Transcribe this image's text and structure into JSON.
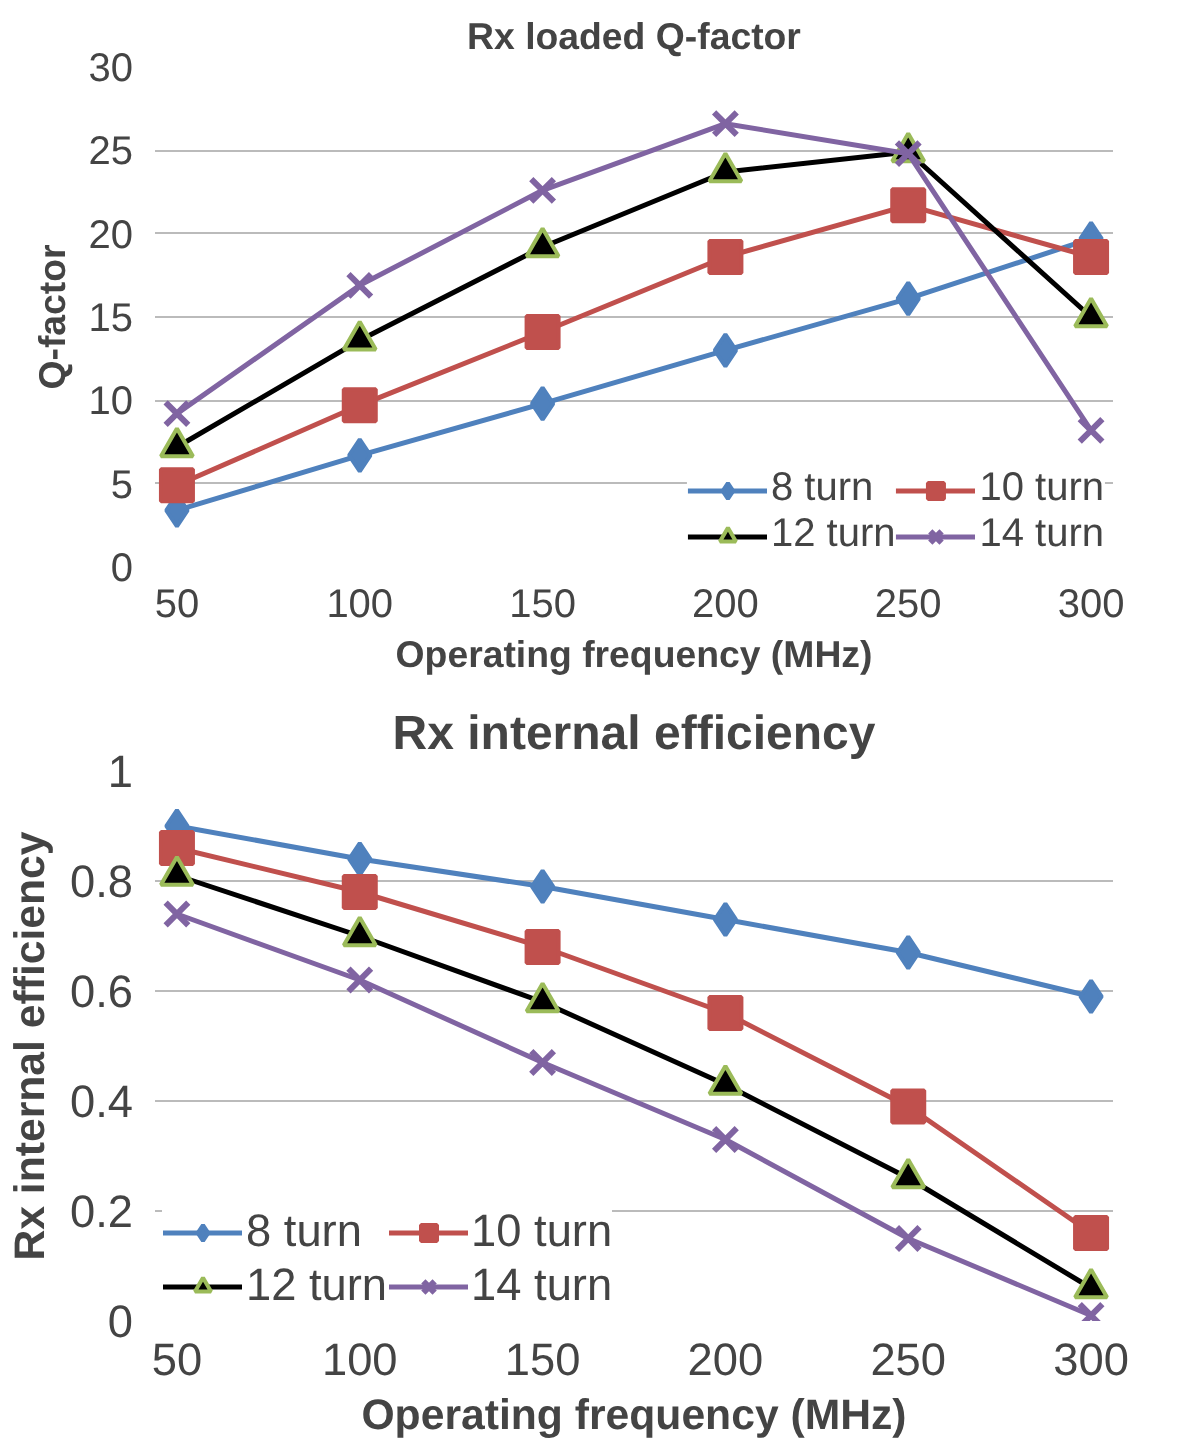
{
  "chart_data": [
    {
      "type": "line",
      "title": "Rx loaded Q-factor",
      "xlabel": "Operating frequency (MHz)",
      "ylabel": "Q-factor",
      "categories": [
        "50",
        "100",
        "150",
        "200",
        "250",
        "300"
      ],
      "series": [
        {
          "name": "8 turn",
          "color": "#4f81bd",
          "marker": "diamond",
          "values": [
            3.4,
            6.7,
            9.8,
            13.0,
            16.1,
            19.7
          ]
        },
        {
          "name": "10 turn",
          "color": "#c0504d",
          "marker": "square",
          "values": [
            4.9,
            9.7,
            14.1,
            18.6,
            21.7,
            18.6
          ]
        },
        {
          "name": "12 turn",
          "color": "#000000",
          "marker": "triangle",
          "values": [
            7.2,
            13.6,
            19.2,
            23.7,
            24.9,
            15.0
          ]
        },
        {
          "name": "14 turn",
          "color": "#8064a2",
          "marker": "cross",
          "values": [
            9.2,
            16.9,
            22.6,
            26.6,
            24.8,
            8.2
          ]
        }
      ],
      "ylim": [
        0,
        30
      ],
      "yticks": [
        0,
        5,
        10,
        15,
        20,
        25,
        30
      ],
      "grid": "y",
      "legend": "bottom right"
    },
    {
      "type": "line",
      "title": "Rx internal efficiency",
      "xlabel": "Operating frequency (MHz)",
      "ylabel": "Rx internal efficiency",
      "categories": [
        "50",
        "100",
        "150",
        "200",
        "250",
        "300"
      ],
      "series": [
        {
          "name": "8 turn",
          "color": "#4f81bd",
          "marker": "diamond",
          "values": [
            0.9,
            0.84,
            0.79,
            0.73,
            0.67,
            0.59
          ]
        },
        {
          "name": "10 turn",
          "color": "#c0504d",
          "marker": "square",
          "values": [
            0.86,
            0.78,
            0.68,
            0.56,
            0.39,
            0.16
          ]
        },
        {
          "name": "12 turn",
          "color": "#000000",
          "marker": "triangle",
          "values": [
            0.81,
            0.7,
            0.58,
            0.43,
            0.26,
            0.06
          ]
        },
        {
          "name": "14 turn",
          "color": "#8064a2",
          "marker": "cross",
          "values": [
            0.74,
            0.62,
            0.47,
            0.33,
            0.15,
            0.01
          ]
        }
      ],
      "ylim": [
        0,
        1
      ],
      "yticks": [
        0,
        {
          "value": 0.2,
          "label": "0.2"
        },
        {
          "value": 0.4,
          "label": "0.4"
        },
        {
          "value": 0.6,
          "label": "0.6"
        },
        {
          "value": 0.8,
          "label": "0.8"
        },
        1
      ],
      "grid": "y",
      "legend": "bottom left"
    }
  ]
}
